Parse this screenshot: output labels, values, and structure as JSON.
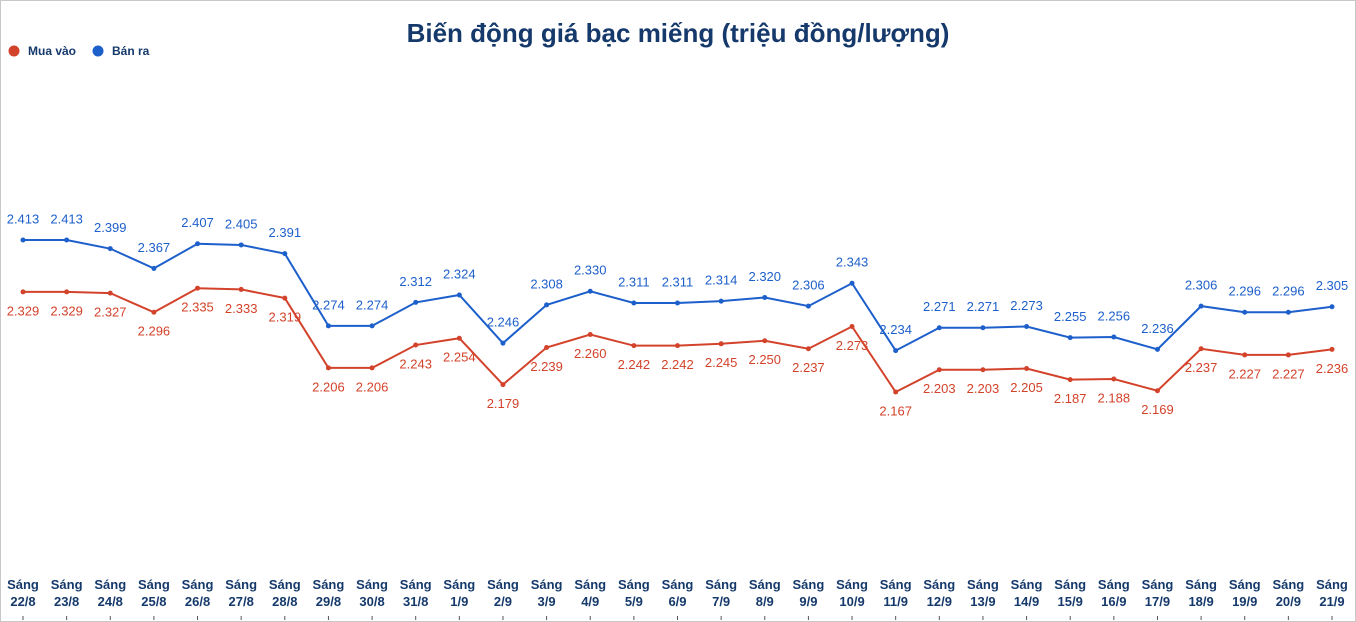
{
  "chart_data": {
    "type": "line",
    "title": "Biến động giá bạc miếng (triệu đồng/lượng)",
    "categories": [
      [
        "Sáng",
        "22/8"
      ],
      [
        "Sáng",
        "23/8"
      ],
      [
        "Sáng",
        "24/8"
      ],
      [
        "Sáng",
        "25/8"
      ],
      [
        "Sáng",
        "26/8"
      ],
      [
        "Sáng",
        "27/8"
      ],
      [
        "Sáng",
        "28/8"
      ],
      [
        "Sáng",
        "29/8"
      ],
      [
        "Sáng",
        "30/8"
      ],
      [
        "Sáng",
        "31/8"
      ],
      [
        "Sáng",
        "1/9"
      ],
      [
        "Sáng",
        "2/9"
      ],
      [
        "Sáng",
        "3/9"
      ],
      [
        "Sáng",
        "4/9"
      ],
      [
        "Sáng",
        "5/9"
      ],
      [
        "Sáng",
        "6/9"
      ],
      [
        "Sáng",
        "7/9"
      ],
      [
        "Sáng",
        "8/9"
      ],
      [
        "Sáng",
        "9/9"
      ],
      [
        "Sáng",
        "10/9"
      ],
      [
        "Sáng",
        "11/9"
      ],
      [
        "Sáng",
        "12/9"
      ],
      [
        "Sáng",
        "13/9"
      ],
      [
        "Sáng",
        "14/9"
      ],
      [
        "Sáng",
        "15/9"
      ],
      [
        "Sáng",
        "16/9"
      ],
      [
        "Sáng",
        "17/9"
      ],
      [
        "Sáng",
        "18/9"
      ],
      [
        "Sáng",
        "19/9"
      ],
      [
        "Sáng",
        "20/9"
      ],
      [
        "Sáng",
        "21/9"
      ]
    ],
    "series": [
      {
        "name": "Mua vào",
        "color": "#d3422a",
        "values": [
          2.329,
          2.329,
          2.327,
          2.296,
          2.335,
          2.333,
          2.319,
          2.206,
          2.206,
          2.243,
          2.254,
          2.179,
          2.239,
          2.26,
          2.242,
          2.242,
          2.245,
          2.25,
          2.237,
          2.273,
          2.167,
          2.203,
          2.203,
          2.205,
          2.187,
          2.188,
          2.169,
          2.237,
          2.227,
          2.227,
          2.236
        ],
        "value_labels": [
          "2.329",
          "2.329",
          "2.327",
          "2.296",
          "2.335",
          "2.333",
          "2.319",
          "2.206",
          "2.206",
          "2.243",
          "2.254",
          "2.179",
          "2.239",
          "2.260",
          "2.242",
          "2.242",
          "2.245",
          "2.250",
          "2.237",
          "2.273",
          "2.167",
          "2.203",
          "2.203",
          "2.205",
          "2.187",
          "2.188",
          "2.169",
          "2.237",
          "2.227",
          "2.227",
          "2.236"
        ]
      },
      {
        "name": "Bán ra",
        "color": "#1d5fcb",
        "values": [
          2.413,
          2.413,
          2.399,
          2.367,
          2.407,
          2.405,
          2.391,
          2.274,
          2.274,
          2.312,
          2.324,
          2.246,
          2.308,
          2.33,
          2.311,
          2.311,
          2.314,
          2.32,
          2.306,
          2.343,
          2.234,
          2.271,
          2.271,
          2.273,
          2.255,
          2.256,
          2.236,
          2.306,
          2.296,
          2.296,
          2.305
        ],
        "value_labels": [
          "2.413",
          "2.413",
          "2.399",
          "2.367",
          "2.407",
          "2.405",
          "2.391",
          "2.274",
          "2.274",
          "2.312",
          "2.324",
          "2.246",
          "2.308",
          "2.330",
          "2.311",
          "2.311",
          "2.314",
          "2.320",
          "2.306",
          "2.343",
          "2.234",
          "2.271",
          "2.271",
          "2.273",
          "2.255",
          "2.256",
          "2.236",
          "2.306",
          "2.296",
          "2.296",
          "2.305"
        ]
      }
    ]
  }
}
